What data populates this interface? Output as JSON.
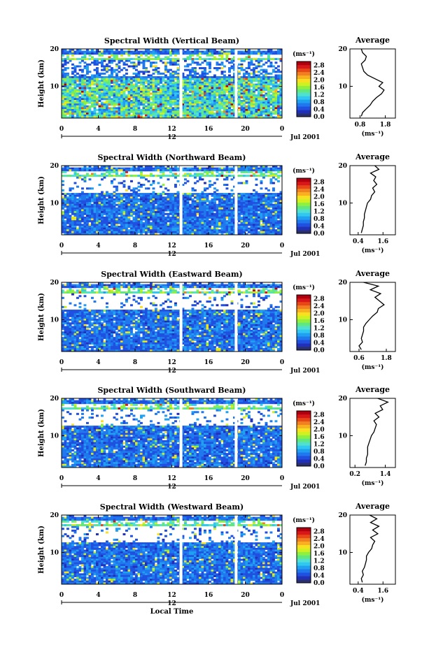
{
  "colors": {
    "scale": [
      "#2a2f6e",
      "#2030b8",
      "#2050e0",
      "#2078ee",
      "#20a0f0",
      "#30c8f0",
      "#50e0d0",
      "#60e880",
      "#90f040",
      "#d0f020",
      "#f8e020",
      "#f8b020",
      "#f08020",
      "#e84818",
      "#d81818",
      "#b00010"
    ],
    "white_gap": "#ffffff",
    "axis": "#000000"
  },
  "shared": {
    "date_label": "Jul 2001",
    "mid_tick": "12",
    "colorbar_unit": "(ms⁻¹)",
    "average_title": "Average",
    "average_unit": "(ms⁻¹)",
    "ylabel": "Height (km)",
    "xlabel": "Local Time"
  },
  "panels": [
    {
      "title": "Spectral Width (Vertical Beam)"
    },
    {
      "title": "Spectral Width (Northward Beam)"
    },
    {
      "title": "Spectral Width (Eastward Beam)"
    },
    {
      "title": "Spectral Width (Southward Beam)"
    },
    {
      "title": "Spectral Width (Westward Beam)"
    }
  ],
  "chart_data": [
    {
      "type": "heatmap",
      "title": "Spectral Width (Vertical Beam)",
      "xlabel": "",
      "ylabel": "Height (km)",
      "x_ticks": [
        "0",
        "4",
        "8",
        "12",
        "16",
        "20",
        "0"
      ],
      "y_ticks": [
        "10",
        "20"
      ],
      "ylim": [
        1.5,
        20
      ],
      "colorbar": {
        "unit": "(ms⁻¹)",
        "ticks": [
          "0.0",
          "0.4",
          "0.8",
          "1.2",
          "1.6",
          "2.0",
          "2.4",
          "2.8"
        ],
        "range": [
          0,
          3.0
        ]
      },
      "data_gaps_local_time": [
        13.0,
        19.0
      ],
      "average_profile": {
        "title": "Average",
        "xlabel": "(ms⁻¹)",
        "x_ticks": [
          "0.8",
          "1.8"
        ],
        "xlim": [
          0.4,
          2.2
        ],
        "height": [
          2,
          3,
          4,
          5,
          6,
          7,
          8,
          9,
          10,
          11,
          12,
          13,
          14,
          15,
          16,
          17,
          18,
          19,
          20
        ],
        "value": [
          0.85,
          0.9,
          1.05,
          1.2,
          1.3,
          1.45,
          1.65,
          1.75,
          1.55,
          1.7,
          1.4,
          1.1,
          0.95,
          0.9,
          0.85,
          1.0,
          1.05,
          0.9,
          0.85
        ]
      }
    },
    {
      "type": "heatmap",
      "title": "Spectral Width (Northward Beam)",
      "xlabel": "",
      "ylabel": "Height (km)",
      "x_ticks": [
        "0",
        "4",
        "8",
        "12",
        "16",
        "20",
        "0"
      ],
      "y_ticks": [
        "10",
        "20"
      ],
      "ylim": [
        1.5,
        20
      ],
      "colorbar": {
        "unit": "(ms⁻¹)",
        "ticks": [
          "0.0",
          "0.4",
          "0.8",
          "1.2",
          "1.6",
          "2.0",
          "2.4",
          "2.8"
        ],
        "range": [
          0,
          3.0
        ]
      },
      "data_gaps_local_time": [
        13.0,
        19.0
      ],
      "average_profile": {
        "title": "Average",
        "xlabel": "(ms⁻¹)",
        "x_ticks": [
          "0.4",
          "1.6"
        ],
        "xlim": [
          0.0,
          2.2
        ],
        "height": [
          2,
          3,
          4,
          5,
          6,
          7,
          8,
          9,
          10,
          11,
          12,
          13,
          14,
          15,
          16,
          17,
          18,
          19,
          20
        ],
        "value": [
          0.55,
          0.6,
          0.65,
          0.65,
          0.7,
          0.7,
          0.75,
          0.8,
          0.85,
          1.0,
          1.05,
          1.2,
          1.1,
          1.3,
          1.15,
          1.25,
          1.0,
          1.4,
          1.2
        ]
      }
    },
    {
      "type": "heatmap",
      "title": "Spectral Width (Eastward Beam)",
      "xlabel": "",
      "ylabel": "Height (km)",
      "x_ticks": [
        "0",
        "4",
        "8",
        "12",
        "16",
        "20",
        "0"
      ],
      "y_ticks": [
        "10",
        "20"
      ],
      "ylim": [
        1.5,
        20
      ],
      "colorbar": {
        "unit": "(ms⁻¹)",
        "ticks": [
          "0.0",
          "0.4",
          "0.8",
          "1.2",
          "1.6",
          "2.0",
          "2.4",
          "2.8"
        ],
        "range": [
          0,
          3.0
        ]
      },
      "data_gaps_local_time": [
        13.0,
        19.0
      ],
      "average_profile": {
        "title": "Average",
        "xlabel": "(ms⁻¹)",
        "x_ticks": [
          "0.6",
          "1.8"
        ],
        "xlim": [
          0.2,
          2.2
        ],
        "height": [
          2,
          3,
          4,
          5,
          6,
          7,
          8,
          9,
          10,
          11,
          12,
          13,
          14,
          15,
          16,
          17,
          18,
          19,
          20
        ],
        "value": [
          0.7,
          0.6,
          0.75,
          0.7,
          0.75,
          0.8,
          0.8,
          0.9,
          1.05,
          1.2,
          1.4,
          1.45,
          1.7,
          1.5,
          1.3,
          1.55,
          1.1,
          1.45,
          0.8
        ]
      }
    },
    {
      "type": "heatmap",
      "title": "Spectral Width (Southward Beam)",
      "xlabel": "",
      "ylabel": "Height (km)",
      "x_ticks": [
        "0",
        "4",
        "8",
        "12",
        "16",
        "20",
        "0"
      ],
      "y_ticks": [
        "10",
        "20"
      ],
      "ylim": [
        1.5,
        20
      ],
      "colorbar": {
        "unit": "(ms⁻¹)",
        "ticks": [
          "0.0",
          "0.4",
          "0.8",
          "1.2",
          "1.6",
          "2.0",
          "2.4",
          "2.8"
        ],
        "range": [
          0,
          3.0
        ]
      },
      "data_gaps_local_time": [
        13.0,
        19.0
      ],
      "average_profile": {
        "title": "Average",
        "xlabel": "(ms⁻¹)",
        "x_ticks": [
          "0.2",
          "1.4"
        ],
        "xlim": [
          0.0,
          1.8
        ],
        "height": [
          2,
          3,
          4,
          5,
          6,
          7,
          8,
          9,
          10,
          11,
          12,
          13,
          14,
          15,
          16,
          17,
          18,
          19,
          20
        ],
        "value": [
          0.6,
          0.65,
          0.65,
          0.7,
          0.7,
          0.7,
          0.75,
          0.8,
          0.85,
          0.95,
          1.0,
          1.05,
          0.95,
          1.15,
          1.0,
          1.3,
          1.2,
          1.5,
          1.1
        ]
      }
    },
    {
      "type": "heatmap",
      "title": "Spectral Width (Westward Beam)",
      "xlabel": "Local Time",
      "ylabel": "Height (km)",
      "x_ticks": [
        "0",
        "4",
        "8",
        "12",
        "16",
        "20",
        "0"
      ],
      "y_ticks": [
        "10",
        "20"
      ],
      "ylim": [
        1.5,
        20
      ],
      "colorbar": {
        "unit": "(ms⁻¹)",
        "ticks": [
          "0.0",
          "0.4",
          "0.8",
          "1.2",
          "1.6",
          "2.0",
          "2.4",
          "2.8"
        ],
        "range": [
          0,
          3.0
        ]
      },
      "data_gaps_local_time": [
        13.0,
        19.0
      ],
      "average_profile": {
        "title": "Average",
        "xlabel": "(ms⁻¹)",
        "x_ticks": [
          "0.4",
          "1.6"
        ],
        "xlim": [
          0.0,
          2.2
        ],
        "height": [
          2,
          3,
          4,
          5,
          6,
          7,
          8,
          9,
          10,
          11,
          12,
          13,
          14,
          15,
          16,
          17,
          18,
          19,
          20
        ],
        "value": [
          0.6,
          0.55,
          0.65,
          0.6,
          0.7,
          0.75,
          0.8,
          0.8,
          0.9,
          1.05,
          1.1,
          1.2,
          1.0,
          1.35,
          1.1,
          1.4,
          1.0,
          1.3,
          0.95
        ]
      }
    }
  ]
}
